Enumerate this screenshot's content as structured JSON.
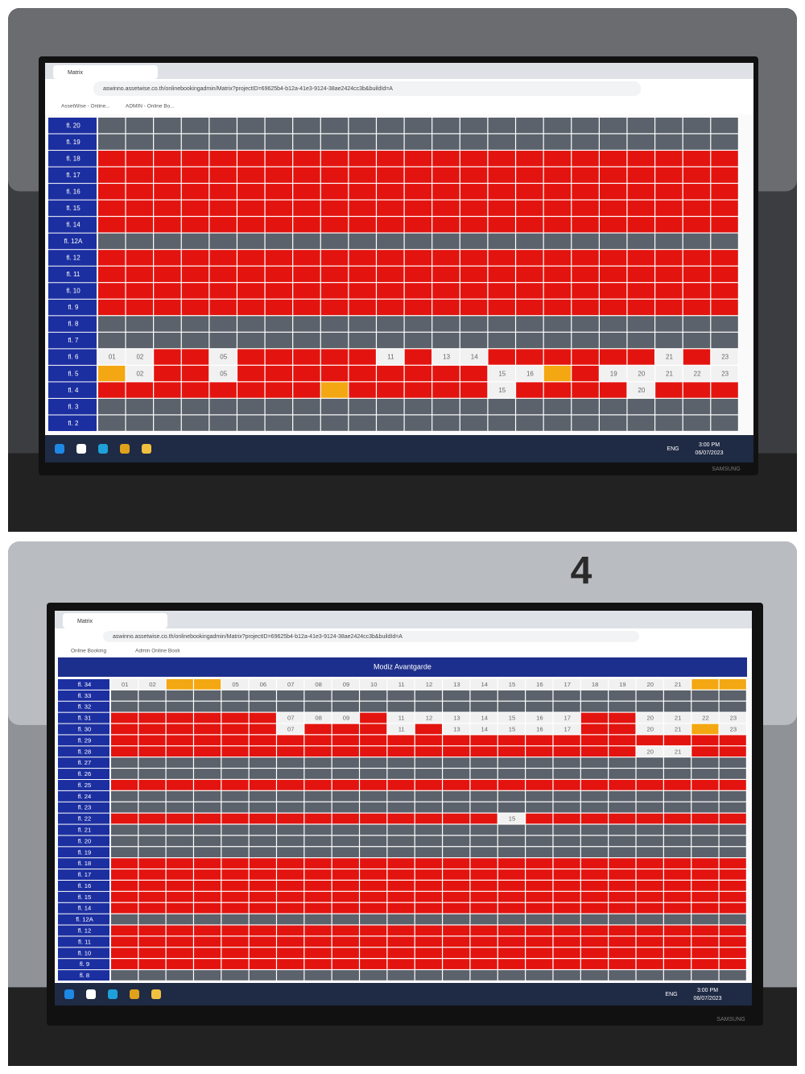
{
  "colors": {
    "r": "#e3140f",
    "g": "#5b626b",
    "w": "#f1f1f1",
    "y": "#f3a712"
  },
  "background_sign": "4",
  "panels": [
    {
      "tab": "Matrix",
      "url": "aswinno.assetwise.co.th/onlinebookingadmin/Matrix?projectID=69625b4-b12a-41e3-9124-38ae2424cc3b&buildId=A",
      "bookmarks": [
        "AssetWise - Online...",
        "ADMIN - Online Bo..."
      ],
      "brand": "SAMSUNG",
      "taskbar": {
        "lang": "ENG",
        "time": "3:00 PM",
        "date": "06/07/2023"
      },
      "floors": [
        {
          "label": "fl. 20",
          "state": "ggggggggggggggggggggggg"
        },
        {
          "label": "fl. 19",
          "state": "ggggggggggggggggggggggg"
        },
        {
          "label": "fl. 18",
          "state": "rrrrrrrrrrrrrrrrrrrrrrr"
        },
        {
          "label": "fl. 17",
          "state": "rrrrrrrrrrrrrrrrrrrrrrr"
        },
        {
          "label": "fl. 16",
          "state": "rrrrrrrrrrrrrrrrrrrrrrr"
        },
        {
          "label": "fl. 15",
          "state": "rrrrrrrrrrrrrrrrrrrrrrr"
        },
        {
          "label": "fl. 14",
          "state": "rrrrrrrrrrrrrrrrrrrrrrr"
        },
        {
          "label": "fl. 12A",
          "state": "ggggggggggggggggggggggg"
        },
        {
          "label": "fl. 12",
          "state": "rrrrrrrrrrrrrrrrrrrrrrr"
        },
        {
          "label": "fl. 11",
          "state": "rrrrrrrrrrrrrrrrrrrrrrr"
        },
        {
          "label": "fl. 10",
          "state": "rrrrrrrrrrrrrrrrrrrrrrr"
        },
        {
          "label": "fl. 9",
          "state": "rrrrrrrrrrrrrrrrrrrrrrr"
        },
        {
          "label": "fl. 8",
          "state": "ggggggggggggggggggggggg"
        },
        {
          "label": "fl. 7",
          "state": "ggggggggggggggggggggggg"
        },
        {
          "label": "fl. 6",
          "state": "wwrrwrrrrrwrwwrrrrrrwrw",
          "labels": [
            "01",
            "02",
            null,
            null,
            "05",
            null,
            null,
            null,
            null,
            null,
            "11",
            null,
            "13",
            "14",
            null,
            null,
            null,
            null,
            null,
            null,
            "21",
            null,
            "23"
          ]
        },
        {
          "label": "fl. 5",
          "state": "ywrrwrrrrrrrrrwwyrwwwww",
          "labels": [
            null,
            "02",
            null,
            null,
            "05",
            null,
            null,
            null,
            null,
            null,
            null,
            null,
            null,
            null,
            "15",
            "16",
            null,
            null,
            "19",
            "20",
            "21",
            "22",
            "23"
          ]
        },
        {
          "label": "fl. 4",
          "state": "rrrrrrrryrrrrrwrrrrwrrr",
          "labels": [
            null,
            null,
            null,
            null,
            null,
            null,
            null,
            null,
            null,
            null,
            null,
            null,
            null,
            null,
            "15",
            null,
            null,
            null,
            null,
            "20",
            null,
            null,
            null
          ]
        },
        {
          "label": "fl. 3",
          "state": "ggggggggggggggggggggggg"
        },
        {
          "label": "fl. 2",
          "state": "ggggggggggggggggggggggg"
        }
      ]
    },
    {
      "tab": "Matrix",
      "url": "aswinno.assetwise.co.th/onlinebookingadmin/Matrix?projectID=69625b4-b12a-41e3-9124-38ae2424cc3b&buildId=A",
      "bookmarks": [
        "Online Booking",
        "Admin Online Book"
      ],
      "title": "Modiz Avantgarde",
      "brand": "SAMSUNG",
      "taskbar": {
        "lang": "ENG",
        "time": "3:00 PM",
        "date": "06/07/2023"
      },
      "floors": [
        {
          "label": "fl. 34",
          "state": "wwyywwwwwwwwwwwwwwwwwyy",
          "labels": [
            "01",
            "02",
            null,
            null,
            "05",
            "06",
            "07",
            "08",
            "09",
            "10",
            "11",
            "12",
            "13",
            "14",
            "15",
            "16",
            "17",
            "18",
            "19",
            "20",
            "21",
            null,
            null
          ]
        },
        {
          "label": "fl. 33",
          "state": "ggggggggggggggggggggggg"
        },
        {
          "label": "fl. 32",
          "state": "ggggggggggggggggggggggg"
        },
        {
          "label": "fl. 31",
          "state": "rrrrrrwwwrwwwwwwwrrwwww",
          "labels": [
            null,
            null,
            null,
            null,
            null,
            null,
            "07",
            "08",
            "09",
            null,
            "11",
            "12",
            "13",
            "14",
            "15",
            "16",
            "17",
            null,
            null,
            "20",
            "21",
            "22",
            "23"
          ]
        },
        {
          "label": "fl. 30",
          "state": "rrrrrrwrrrwrwwwwwrrwwyw",
          "labels": [
            null,
            null,
            null,
            null,
            null,
            null,
            "07",
            null,
            null,
            null,
            "11",
            null,
            "13",
            "14",
            "15",
            "16",
            "17",
            null,
            null,
            "20",
            "21",
            null,
            "23"
          ]
        },
        {
          "label": "fl. 29",
          "state": "rrrrrrrrrrrrrrrrrrrrrrr"
        },
        {
          "label": "fl. 28",
          "state": "rrrrrrrrrrrrrrrrrrrwwrr",
          "labels": [
            null,
            null,
            null,
            null,
            null,
            null,
            null,
            null,
            null,
            null,
            null,
            null,
            null,
            null,
            null,
            null,
            null,
            null,
            null,
            "20",
            "21",
            null,
            null
          ]
        },
        {
          "label": "fl. 27",
          "state": "ggggggggggggggggggggggg"
        },
        {
          "label": "fl. 26",
          "state": "ggggggggggggggggggggggg"
        },
        {
          "label": "fl. 25",
          "state": "rrrrrrrrrrrrrrrrrrrrrrr"
        },
        {
          "label": "fl. 24",
          "state": "ggggggggggggggggggggggg"
        },
        {
          "label": "fl. 23",
          "state": "ggggggggggggggggggggggg"
        },
        {
          "label": "fl. 22",
          "state": "rrrrrrrrrrrrrrwrrrrrrrr",
          "labels": [
            null,
            null,
            null,
            null,
            null,
            null,
            null,
            null,
            null,
            null,
            null,
            null,
            null,
            null,
            "15",
            null,
            null,
            null,
            null,
            null,
            null,
            null,
            null
          ]
        },
        {
          "label": "fl. 21",
          "state": "ggggggggggggggggggggggg"
        },
        {
          "label": "fl. 20",
          "state": "ggggggggggggggggggggggg"
        },
        {
          "label": "fl. 19",
          "state": "ggggggggggggggggggggggg"
        },
        {
          "label": "fl. 18",
          "state": "rrrrrrrrrrrrrrrrrrrrrrr"
        },
        {
          "label": "fl. 17",
          "state": "rrrrrrrrrrrrrrrrrrrrrrr"
        },
        {
          "label": "fl. 16",
          "state": "rrrrrrrrrrrrrrrrrrrrrrr"
        },
        {
          "label": "fl. 15",
          "state": "rrrrrrrrrrrrrrrrrrrrrrr"
        },
        {
          "label": "fl. 14",
          "state": "rrrrrrrrrrrrrrrrrrrrrrr"
        },
        {
          "label": "fl. 12A",
          "state": "ggggggggggggggggggggggg"
        },
        {
          "label": "fl. 12",
          "state": "rrrrrrrrrrrrrrrrrrrrrrr"
        },
        {
          "label": "fl. 11",
          "state": "rrrrrrrrrrrrrrrrrrrrrrr"
        },
        {
          "label": "fl. 10",
          "state": "rrrrrrrrrrrrrrrrrrrrrrr"
        },
        {
          "label": "fl. 9",
          "state": "rrrrrrrrrrrrrrrrrrrrrrr"
        },
        {
          "label": "fl. 8",
          "state": "ggggggggggggggggggggggg"
        }
      ]
    }
  ]
}
